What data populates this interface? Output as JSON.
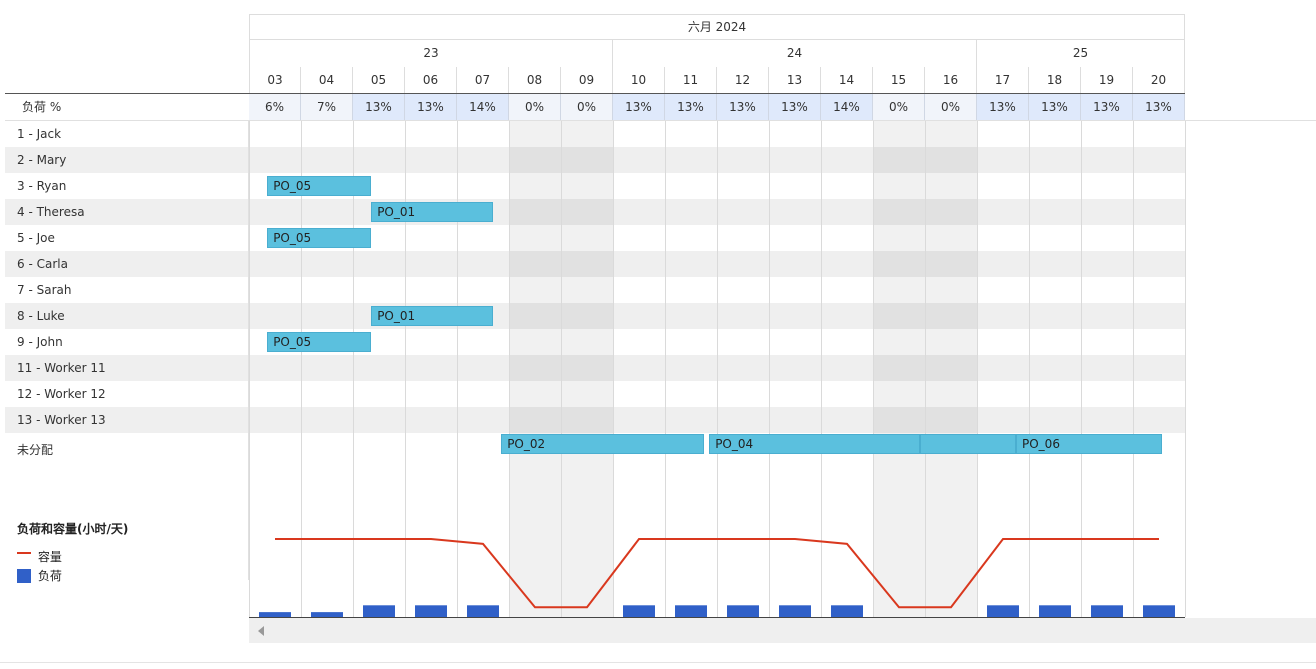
{
  "header": {
    "month_label": "六月 2024",
    "weeks": [
      {
        "label": "23",
        "start": 0,
        "span": 7
      },
      {
        "label": "24",
        "start": 7,
        "span": 7
      },
      {
        "label": "25",
        "start": 14,
        "span": 4
      }
    ],
    "days": [
      "03",
      "04",
      "05",
      "06",
      "07",
      "08",
      "09",
      "10",
      "11",
      "12",
      "13",
      "14",
      "15",
      "16",
      "17",
      "18",
      "19",
      "20"
    ],
    "weekend_indices": [
      5,
      6,
      12,
      13
    ]
  },
  "load_row": {
    "label": "负荷 %",
    "values": [
      "6%",
      "7%",
      "13%",
      "13%",
      "14%",
      "0%",
      "0%",
      "13%",
      "13%",
      "13%",
      "13%",
      "14%",
      "0%",
      "0%",
      "13%",
      "13%",
      "13%",
      "13%"
    ],
    "highlight": [
      false,
      false,
      true,
      true,
      true,
      false,
      false,
      true,
      true,
      true,
      true,
      true,
      false,
      false,
      true,
      true,
      true,
      true
    ]
  },
  "workers": [
    "1 - Jack",
    "2 - Mary",
    "3 - Ryan",
    "4 - Theresa",
    "5 - Joe",
    "6 - Carla",
    "7 - Sarah",
    "8 - Luke",
    "9 - John",
    "11 - Worker 11",
    "12 - Worker 12",
    "13 - Worker 13"
  ],
  "unassigned_label": "未分配",
  "tasks": [
    {
      "label": "PO_05",
      "row": 2,
      "start": 0.35,
      "end": 2.35
    },
    {
      "label": "PO_01",
      "row": 3,
      "start": 2.35,
      "end": 4.7
    },
    {
      "label": "PO_05",
      "row": 4,
      "start": 0.35,
      "end": 2.35
    },
    {
      "label": "PO_01",
      "row": 7,
      "start": 2.35,
      "end": 4.7
    },
    {
      "label": "PO_05",
      "row": 8,
      "start": 0.35,
      "end": 2.35
    },
    {
      "label": "PO_02",
      "row": 12,
      "start": 4.85,
      "end": 8.75
    },
    {
      "label": "PO_04",
      "row": 12,
      "start": 8.85,
      "end": 12.9
    },
    {
      "label": "",
      "row": 12,
      "start": 12.9,
      "end": 14.75
    },
    {
      "label": "PO_06",
      "row": 12,
      "start": 14.75,
      "end": 17.55
    }
  ],
  "chart_data": {
    "type": "bar",
    "title": "负荷和容量(小时/天)",
    "categories": [
      "03",
      "04",
      "05",
      "06",
      "07",
      "08",
      "09",
      "10",
      "11",
      "12",
      "13",
      "14",
      "15",
      "16",
      "17",
      "18",
      "19",
      "20"
    ],
    "series": [
      {
        "name": "容量",
        "type": "line",
        "color": "#d9381e",
        "values": [
          8,
          8,
          8,
          8,
          7.5,
          1,
          1,
          8,
          8,
          8,
          8,
          7.5,
          1,
          1,
          8,
          8,
          8,
          8
        ]
      },
      {
        "name": "负荷",
        "type": "bar",
        "color": "#3060c8",
        "values": [
          0.5,
          0.5,
          1.2,
          1.2,
          1.2,
          0,
          0,
          1.2,
          1.2,
          1.2,
          1.2,
          1.2,
          0,
          0,
          1.2,
          1.2,
          1.2,
          1.2
        ]
      }
    ],
    "ylim": [
      0,
      12
    ],
    "legend": "left"
  }
}
